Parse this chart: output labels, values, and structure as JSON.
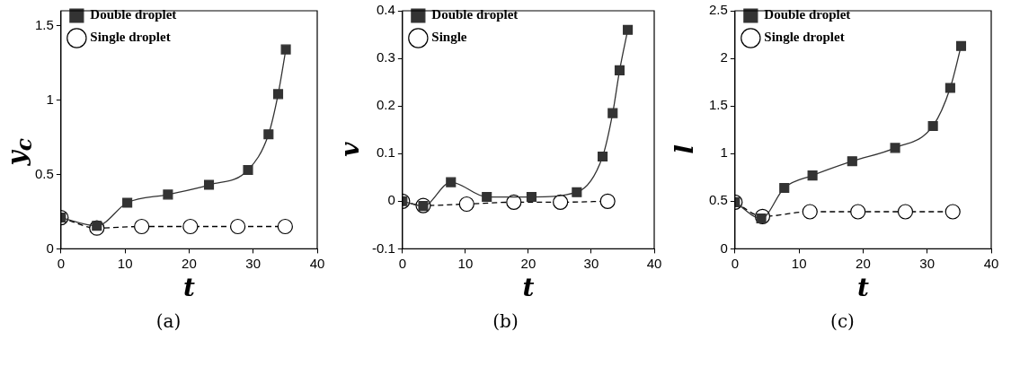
{
  "chart_data": [
    {
      "type": "line",
      "xlabel": "t",
      "ylabel": "y$_{c}$",
      "xlim": [
        0,
        40
      ],
      "xticks": [
        0,
        10,
        20,
        30,
        40
      ],
      "ylim": [
        0,
        1.6
      ],
      "yticks": [
        0,
        0.5,
        1,
        1.5
      ],
      "grid": false,
      "legend": "top left",
      "annotations": [
        "(a)"
      ],
      "series": [
        {
          "name": "Double droplet",
          "color": "#333333",
          "marker": "square",
          "line_style": "solid",
          "x": [
            0,
            5.6,
            10.35,
            16.7,
            23.1,
            29.2,
            32.4,
            33.9,
            35.1
          ],
          "values": [
            0.21,
            0.155,
            0.31,
            0.365,
            0.43,
            0.53,
            0.77,
            1.04,
            1.34
          ]
        },
        {
          "name": "Single droplet",
          "color": "#000000",
          "marker": "circle",
          "line_style": "dashed",
          "x": [
            0,
            5.6,
            12.6,
            20.2,
            27.6,
            35
          ],
          "values": [
            0.21,
            0.14,
            0.15,
            0.15,
            0.15,
            0.15
          ]
        }
      ]
    },
    {
      "type": "line",
      "xlabel": "t",
      "ylabel": "v",
      "xlim": [
        0,
        40
      ],
      "xticks": [
        0,
        10,
        20,
        30,
        40
      ],
      "ylim": [
        -0.1,
        0.4
      ],
      "yticks": [
        -0.1,
        0,
        0.1,
        0.2,
        0.3,
        0.4
      ],
      "grid": false,
      "legend": "top left",
      "annotations": [
        "(b)"
      ],
      "series": [
        {
          "name": "Double droplet",
          "color": "#333333",
          "marker": "square",
          "line_style": "solid",
          "x": [
            0,
            3.3,
            7.7,
            13.4,
            20.5,
            27.7,
            31.8,
            33.4,
            34.5,
            35.8
          ],
          "values": [
            0,
            -0.01,
            0.04,
            0.009,
            0.009,
            0.019,
            0.094,
            0.185,
            0.275,
            0.36
          ]
        },
        {
          "name": "Single",
          "color": "#000000",
          "marker": "circle",
          "line_style": "dashed",
          "x": [
            0,
            3.3,
            10.2,
            17.7,
            25.1,
            32.6
          ],
          "values": [
            0,
            -0.009,
            -0.006,
            -0.002,
            -0.002,
            0
          ]
        }
      ]
    },
    {
      "type": "line",
      "xlabel": "t",
      "ylabel": "l",
      "xlim": [
        0,
        40
      ],
      "xticks": [
        0,
        10,
        20,
        30,
        40
      ],
      "ylim": [
        0,
        2.5
      ],
      "yticks": [
        0,
        0.5,
        1,
        1.5,
        2,
        2.5
      ],
      "grid": false,
      "legend": "top left",
      "annotations": [
        "(c)"
      ],
      "series": [
        {
          "name": "Double droplet",
          "color": "#333333",
          "marker": "square",
          "line_style": "solid",
          "x": [
            0,
            4.1,
            7.7,
            12.1,
            18.3,
            25,
            30.9,
            33.6,
            35.3
          ],
          "values": [
            0.49,
            0.32,
            0.64,
            0.77,
            0.92,
            1.06,
            1.29,
            1.69,
            2.13
          ]
        },
        {
          "name": "Single droplet",
          "color": "#000000",
          "marker": "circle",
          "line_style": "dashed",
          "x": [
            0,
            4.3,
            11.7,
            19.2,
            26.6,
            34
          ],
          "values": [
            0.49,
            0.34,
            0.39,
            0.39,
            0.39,
            0.39
          ]
        }
      ]
    }
  ]
}
